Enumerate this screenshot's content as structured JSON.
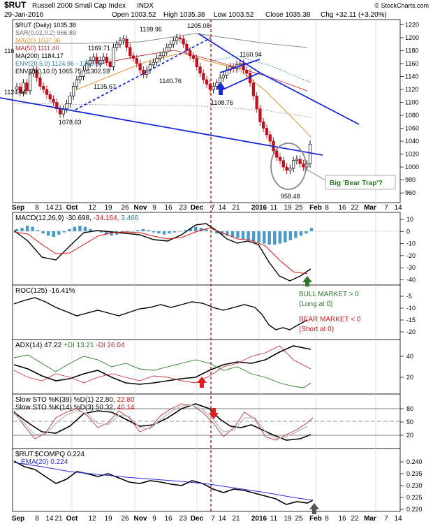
{
  "header": {
    "symbol": "$RUT",
    "name": "Russell 2000 Small Cap Index",
    "exchange": "INDX",
    "date": "29-Jan-2016",
    "open": "Open 1003.52",
    "high": "High 1035.38",
    "low": "Low 1003.52",
    "close": "Close 1035.38",
    "chg": "Chg +32.11 (+3.20%)",
    "credit": "© StockCharts.com"
  },
  "price_legend": [
    {
      "text": "$RUT (Daily) 1035.38",
      "color": "#000000"
    },
    {
      "text": "SAR(0.02,0.2) 966.89",
      "color": "#707070"
    },
    {
      "text": "MA(20) 1037.96",
      "color": "#e39a3a"
    },
    {
      "text": "MA(50) 1111.40",
      "color": "#c0303a"
    },
    {
      "text": "MA(200) 1184.17",
      "color": "#000000"
    },
    {
      "text": "ENV(20,5.0) 1124.96 - 1243.38",
      "color": "#2a7fa8"
    },
    {
      "text": "ENV(200,10.0) 1065.75 - 1302.59",
      "color": "#000000"
    }
  ],
  "annotations": [
    {
      "text": "1124.46"
    },
    {
      "text": "1078.63"
    },
    {
      "text": "1135.67"
    },
    {
      "text": "1169.71"
    },
    {
      "text": "1199.96"
    },
    {
      "text": "1140.76"
    },
    {
      "text": "1205.08"
    },
    {
      "text": "1160.94"
    },
    {
      "text": "1108.76"
    },
    {
      "text": "958.48"
    },
    {
      "text": "116"
    }
  ],
  "callout": "Big 'Bear Trap'?",
  "x_ticks": [
    "Sep",
    "8",
    "14",
    "21",
    "Oct",
    "12",
    "19",
    "26",
    "Nov",
    "9",
    "16",
    "23",
    "Dec",
    "7",
    "14",
    "21",
    "2016",
    "11",
    "19",
    "25",
    "Feb",
    "8",
    "16",
    "22",
    "Mar",
    "7",
    "14"
  ],
  "panels": {
    "macd": {
      "label": "MACD(12,26,9)",
      "v1": "-30.698,",
      "v2": "-34.164,",
      "v3": "3.466",
      "ticks": [
        "10",
        "0",
        "-10",
        "-20",
        "-30",
        "-40"
      ]
    },
    "roc": {
      "label": "ROC(125) -16.41%",
      "ticks": [
        "-5",
        "-10",
        "-15",
        "-20"
      ],
      "bull": "BULL MARKET > 0",
      "bull_sub": "(Long at 0)",
      "bear": "BEAR MARKET < 0",
      "bear_sub": "(Short at 0)"
    },
    "adx": {
      "label": "ADX(14) 47.22",
      "di_plus": "+DI 13.21",
      "di_minus": "-DI 26.04",
      "ticks": [
        "40",
        "20"
      ]
    },
    "sto": {
      "label1_a": "Slow STO %K(39) %D(1)",
      "label1_b": "22.80,",
      "label1_c": "22.80",
      "label2_a": "Slow STO %K(14) %D(3) 50.32,",
      "label2_b": "40.14",
      "ticks": [
        "80",
        "50",
        "20"
      ]
    },
    "ratio": {
      "label": "$RUT:$COMPQ 0.224",
      "ema": "EMA(20) 0.224",
      "ticks": [
        "0.240",
        "0.235",
        "0.230",
        "0.225",
        "0.220"
      ]
    }
  },
  "chart_data": {
    "type": "candlestick",
    "price_ticks": [
      1220,
      1200,
      1180,
      1160,
      1140,
      1120,
      1100,
      1080,
      1060,
      1040,
      1020,
      1000,
      980,
      960
    ],
    "price_range": [
      945,
      1228
    ],
    "closes": [
      1124,
      1115,
      1130,
      1118,
      1145,
      1150,
      1138,
      1125,
      1120,
      1112,
      1105,
      1100,
      1090,
      1082,
      1090,
      1098,
      1110,
      1125,
      1135,
      1140,
      1150,
      1160,
      1165,
      1170,
      1160,
      1165,
      1170,
      1162,
      1155,
      1185,
      1190,
      1195,
      1198,
      1185,
      1172,
      1168,
      1160,
      1150,
      1143,
      1150,
      1158,
      1162,
      1168,
      1172,
      1178,
      1185,
      1190,
      1195,
      1200,
      1198,
      1190,
      1180,
      1172,
      1168,
      1155,
      1145,
      1135,
      1128,
      1120,
      1125,
      1130,
      1138,
      1142,
      1150,
      1155,
      1152,
      1158,
      1160,
      1150,
      1145,
      1130,
      1110,
      1090,
      1070,
      1060,
      1050,
      1040,
      1025,
      1015,
      1010,
      1000,
      995,
      998,
      1010,
      1012,
      1005,
      1000,
      1005,
      1035.38
    ]
  }
}
